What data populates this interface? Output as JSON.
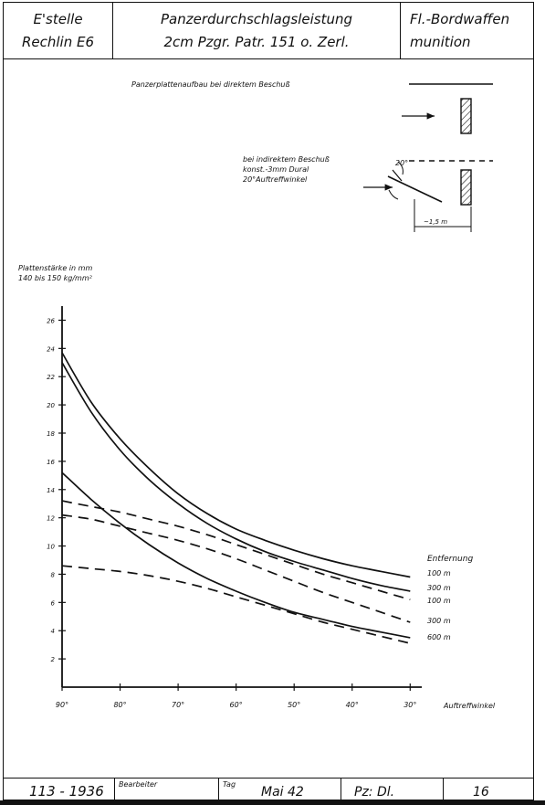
{
  "header": {
    "left_line1": "E'stelle",
    "left_line2": "Rechlin E6",
    "mid_line1": "Panzerdurchschlagsleistung",
    "mid_line2": "2cm Pzgr. Patr. 151 o. Zerl.",
    "right_line1": "Fl.-Bordwaffen",
    "right_line2": "munition"
  },
  "diagram": {
    "title": "Panzerplattenaufbau bei direktem Beschuß",
    "indirect_line1": "bei indirektem Beschuß",
    "indirect_line2": "konst.-3mm Dural",
    "indirect_line3": "20°Auftreffwinkel",
    "angle_label": "20°",
    "distance_label": "~1,5 m"
  },
  "footer": {
    "number": "113 - 1936",
    "editor_label": "Bearbeiter",
    "day_label": "Tag",
    "date": "Mai 42",
    "code": "Pz: Dl.",
    "page": "16"
  },
  "chart_data": {
    "type": "line",
    "ylabel_line1": "Plattenstärke in mm",
    "ylabel_line2": "140 bis 150 kg/mm²",
    "xlabel": "Auftreffwinkel",
    "legend_title": "Entfernung",
    "x_ticks": [
      "90°",
      "80°",
      "70°",
      "60°",
      "50°",
      "40°",
      "30°"
    ],
    "y_ticks": [
      2,
      4,
      6,
      8,
      10,
      12,
      14,
      16,
      18,
      20,
      22,
      24,
      26
    ],
    "xlim": [
      90,
      28
    ],
    "ylim": [
      0,
      27
    ],
    "x": [
      90,
      85,
      80,
      75,
      70,
      65,
      60,
      55,
      50,
      45,
      40,
      35,
      30
    ],
    "series": [
      {
        "name": "100 m",
        "style": "solid",
        "values": [
          23.7,
          20.2,
          17.6,
          15.5,
          13.7,
          12.3,
          11.2,
          10.4,
          9.7,
          9.1,
          8.6,
          8.2,
          7.8
        ]
      },
      {
        "name": "300 m",
        "style": "solid",
        "values": [
          23.0,
          19.5,
          16.8,
          14.7,
          13.0,
          11.6,
          10.5,
          9.6,
          8.9,
          8.3,
          7.7,
          7.2,
          6.8
        ]
      },
      {
        "name": "100 m",
        "style": "dashed",
        "values": [
          13.2,
          12.8,
          12.4,
          11.9,
          11.4,
          10.8,
          10.1,
          9.4,
          8.7,
          8.0,
          7.4,
          6.8,
          6.2
        ]
      },
      {
        "name": "300 m",
        "style": "dashed",
        "values": [
          12.2,
          11.9,
          11.4,
          10.9,
          10.4,
          9.8,
          9.1,
          8.3,
          7.5,
          6.7,
          6.0,
          5.3,
          4.6
        ]
      },
      {
        "name": "600 m",
        "style": "dashed",
        "values": [
          8.6,
          8.4,
          8.2,
          7.9,
          7.5,
          7.0,
          6.4,
          5.8,
          5.2,
          4.6,
          4.1,
          3.6,
          3.1
        ]
      },
      {
        "name": "",
        "style": "solid",
        "values": [
          15.2,
          13.3,
          11.6,
          10.1,
          8.8,
          7.7,
          6.8,
          6.0,
          5.3,
          4.8,
          4.3,
          3.9,
          3.5
        ]
      }
    ],
    "legend_entries": [
      "100 m",
      "300 m",
      "100 m",
      "300 m",
      "600 m"
    ],
    "grid": false
  }
}
